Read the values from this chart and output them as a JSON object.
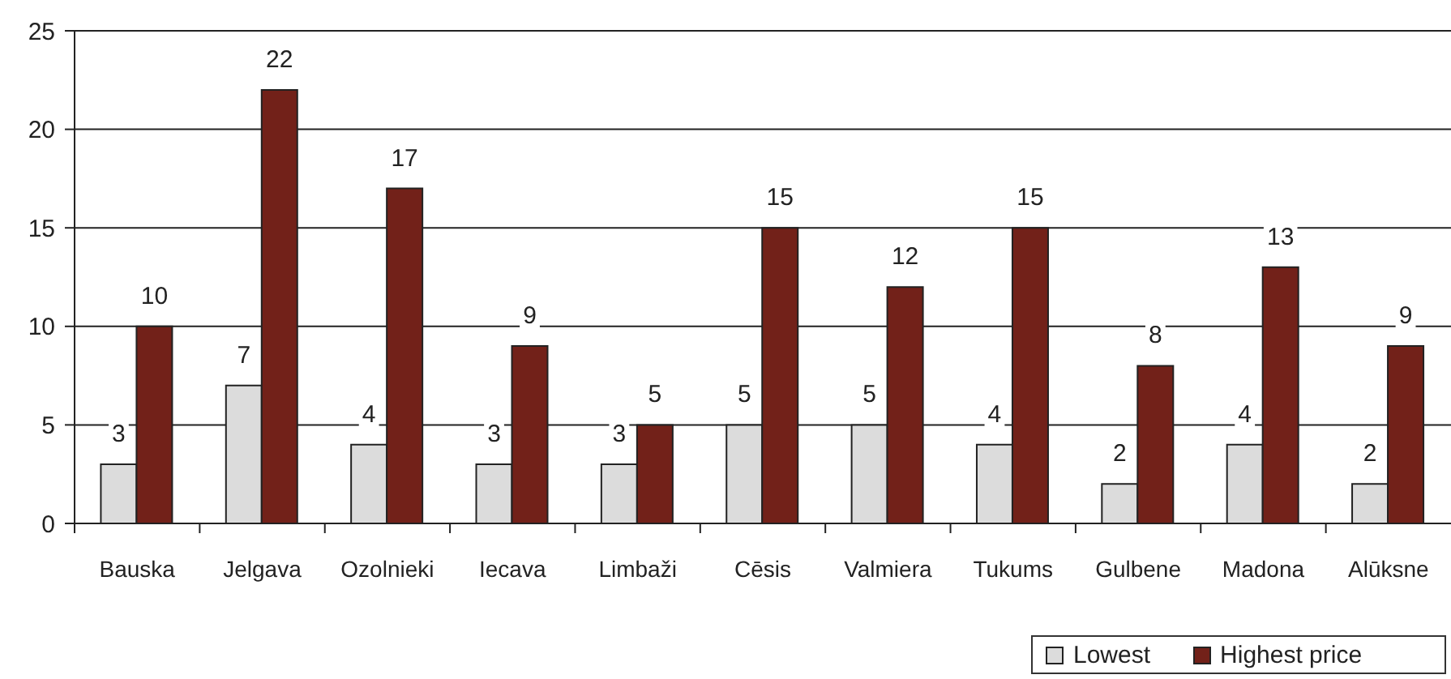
{
  "chart_data": {
    "type": "bar",
    "categories": [
      "Bauska",
      "Jelgava",
      "Ozolnieki",
      "Iecava",
      "Limbaži",
      "Cēsis",
      "Valmiera",
      "Tukums",
      "Gulbene",
      "Madona",
      "Alūksne"
    ],
    "series": [
      {
        "name": "Lowest",
        "color": "#dcdcdc",
        "values": [
          3,
          7,
          4,
          3,
          3,
          5,
          5,
          4,
          2,
          4,
          2
        ]
      },
      {
        "name": "Highest price",
        "color": "#722119",
        "values": [
          10,
          22,
          17,
          9,
          5,
          15,
          12,
          15,
          8,
          13,
          9
        ]
      }
    ],
    "ylim": [
      0,
      25
    ],
    "yticks": [
      0,
      5,
      10,
      15,
      20,
      25
    ],
    "grid": "y",
    "legend": "bottom right",
    "data_labels": true
  }
}
